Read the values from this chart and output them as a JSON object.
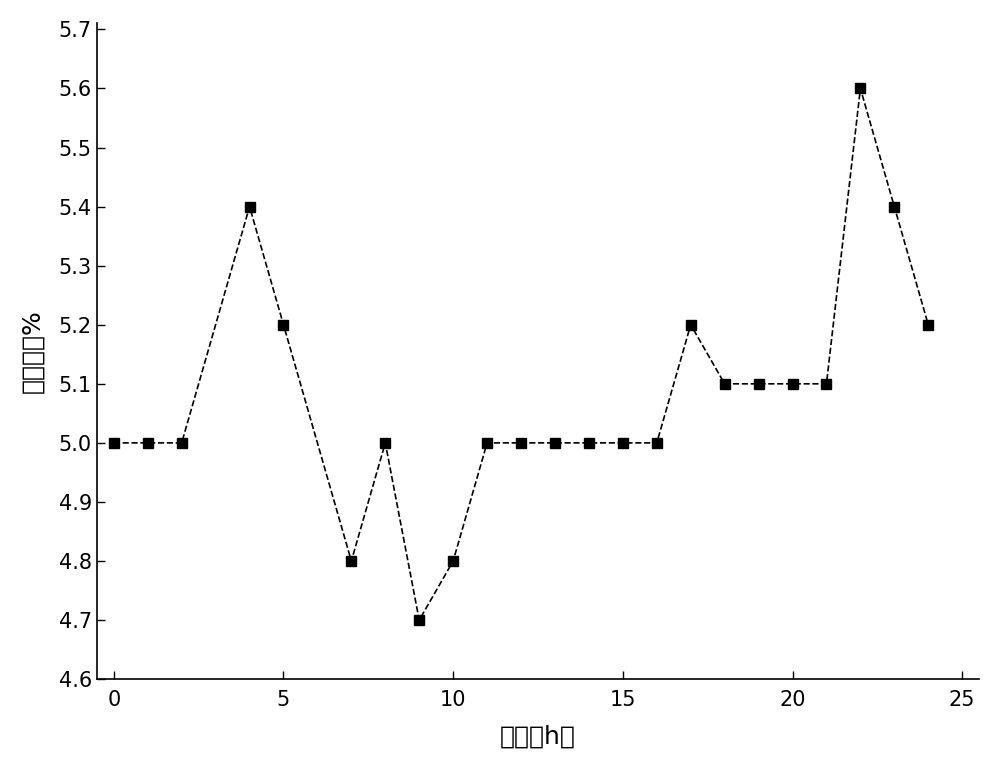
{
  "x": [
    0,
    1,
    2,
    4,
    5,
    7,
    8,
    9,
    10,
    11,
    12,
    13,
    14,
    15,
    16,
    17,
    18,
    19,
    20,
    21,
    22,
    23,
    24
  ],
  "y": [
    5.0,
    5.0,
    5.0,
    5.4,
    5.2,
    4.8,
    5.0,
    4.7,
    4.8,
    5.0,
    5.0,
    5.0,
    5.0,
    5.0,
    5.0,
    5.2,
    5.1,
    5.1,
    5.1,
    5.1,
    5.6,
    5.4,
    5.2
  ],
  "xlabel": "时间（h）",
  "ylabel": "残糖数值%",
  "xlim": [
    -0.5,
    25.5
  ],
  "ylim": [
    4.6,
    5.71
  ],
  "xticks": [
    0,
    5,
    10,
    15,
    20,
    25
  ],
  "yticks": [
    4.6,
    4.7,
    4.8,
    4.9,
    5.0,
    5.1,
    5.2,
    5.3,
    5.4,
    5.5,
    5.6,
    5.7
  ],
  "line_color": "#000000",
  "marker": "s",
  "markersize": 7,
  "linewidth": 1.2,
  "xlabel_fontsize": 18,
  "ylabel_fontsize": 18,
  "tick_fontsize": 15,
  "background_color": "#ffffff"
}
